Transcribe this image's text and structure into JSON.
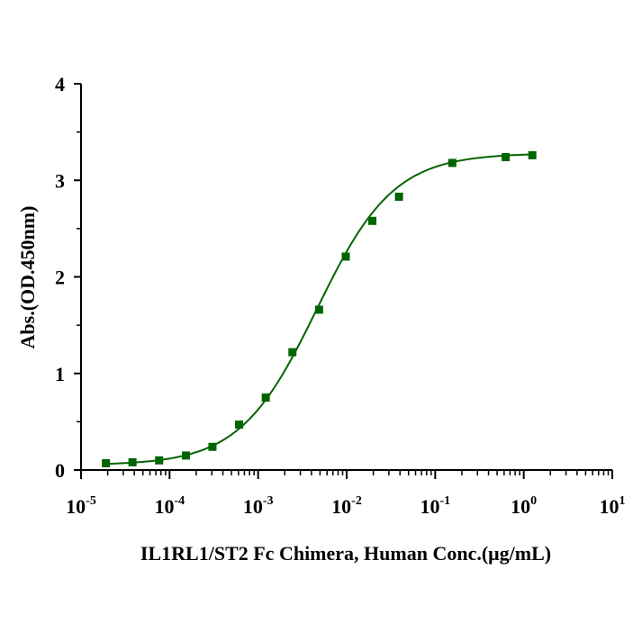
{
  "chart_data": {
    "type": "scatter",
    "title": "",
    "xlabel": "IL1RL1/ST2 Fc Chimera, Human Conc.(μg/mL)",
    "ylabel": "Abs.(OD.450nm)",
    "xscale": "log",
    "xlim": [
      1e-05,
      10
    ],
    "ylim": [
      0,
      4
    ],
    "x_ticks": [
      {
        "base": "10",
        "exp": "-5"
      },
      {
        "base": "10",
        "exp": "-4"
      },
      {
        "base": "10",
        "exp": "-3"
      },
      {
        "base": "10",
        "exp": "-2"
      },
      {
        "base": "10",
        "exp": "-1"
      },
      {
        "base": "10",
        "exp": "0"
      },
      {
        "base": "10",
        "exp": "1"
      }
    ],
    "y_ticks": [
      "0",
      "1",
      "2",
      "3",
      "4"
    ],
    "grid": false,
    "legend": "none",
    "marker_color": "#006400",
    "line_color": "#006400",
    "series": [
      {
        "x": [
          1.91e-05,
          3.81e-05,
          7.63e-05,
          0.000153,
          0.000305,
          0.00061,
          0.00122,
          0.00244,
          0.00488,
          0.00977,
          0.0195,
          0.039,
          0.156,
          0.625,
          1.25
        ],
        "y": [
          0.07,
          0.08,
          0.1,
          0.15,
          0.24,
          0.47,
          0.75,
          1.22,
          1.66,
          2.21,
          2.58,
          2.83,
          3.18,
          3.24,
          3.26
        ],
        "fit": "4PL",
        "fit_params": {
          "bottom": 0.05,
          "top": 3.28,
          "ec50": 0.0046,
          "hill": 1.0
        }
      }
    ]
  }
}
